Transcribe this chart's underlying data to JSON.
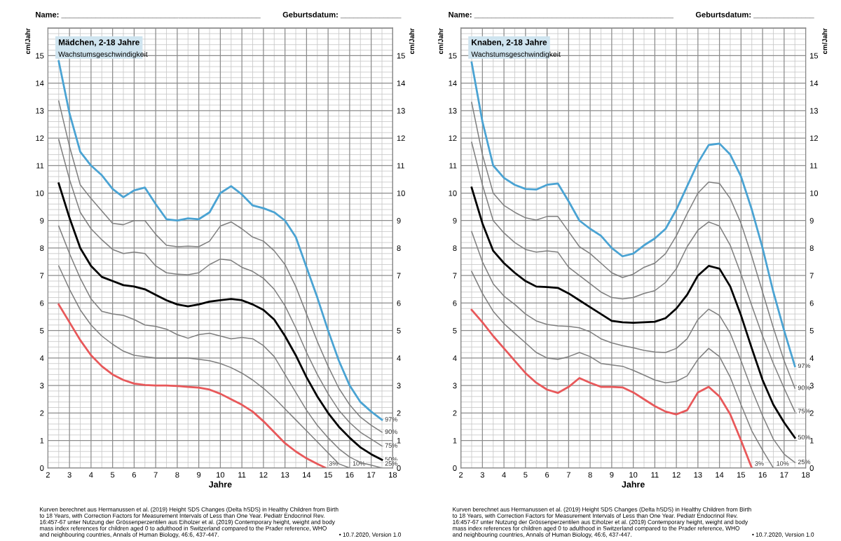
{
  "chart_data": [
    {
      "type": "line",
      "title": "Mädchen, 2-18 Jahre",
      "subtitle": "Wachstumsgeschwindigkeit",
      "xlabel": "Jahre",
      "ylabel": "cm/Jahr",
      "y2label": "cm/Jahr",
      "x": [
        2.5,
        3,
        3.5,
        4,
        4.5,
        5,
        5.5,
        6,
        6.5,
        7,
        7.5,
        8,
        8.5,
        9,
        9.5,
        10,
        10.5,
        11,
        11.5,
        12,
        12.5,
        13,
        13.5,
        14,
        14.5,
        15,
        15.5,
        16,
        16.5,
        17,
        17.5
      ],
      "series": [
        {
          "name": "97%",
          "color": "#4aa3d3",
          "values": [
            14.8,
            12.9,
            11.5,
            11.0,
            10.65,
            10.15,
            9.85,
            10.1,
            10.2,
            9.6,
            9.05,
            9.0,
            9.08,
            9.05,
            9.3,
            10.0,
            10.25,
            9.95,
            9.55,
            9.45,
            9.3,
            9.0,
            8.4,
            7.3,
            6.2,
            5.0,
            3.9,
            3.0,
            2.4,
            2.05,
            1.75
          ]
        },
        {
          "name": "90%",
          "color": "#7f7f7f",
          "values": [
            13.35,
            11.7,
            10.3,
            9.8,
            9.35,
            8.9,
            8.85,
            9.0,
            9.0,
            8.5,
            8.1,
            8.05,
            8.07,
            8.05,
            8.25,
            8.8,
            8.95,
            8.7,
            8.4,
            8.25,
            7.9,
            7.4,
            6.6,
            5.6,
            4.6,
            3.7,
            2.9,
            2.3,
            1.85,
            1.55,
            1.3
          ]
        },
        {
          "name": "75%",
          "color": "#7f7f7f",
          "values": [
            11.95,
            10.5,
            9.3,
            8.7,
            8.3,
            7.95,
            7.8,
            7.85,
            7.8,
            7.35,
            7.1,
            7.05,
            7.03,
            7.1,
            7.4,
            7.6,
            7.55,
            7.3,
            7.15,
            6.9,
            6.5,
            5.9,
            5.1,
            4.2,
            3.4,
            2.7,
            2.1,
            1.65,
            1.3,
            1.05,
            0.8
          ]
        },
        {
          "name": "50%",
          "color": "#000000",
          "values": [
            10.35,
            9.1,
            8.0,
            7.35,
            6.95,
            6.8,
            6.65,
            6.6,
            6.5,
            6.3,
            6.1,
            5.95,
            5.88,
            5.95,
            6.05,
            6.1,
            6.15,
            6.1,
            5.95,
            5.75,
            5.4,
            4.8,
            4.1,
            3.3,
            2.6,
            2.0,
            1.5,
            1.1,
            0.75,
            0.5,
            0.3
          ]
        },
        {
          "name": "25%",
          "color": "#7f7f7f",
          "values": [
            8.8,
            7.8,
            6.9,
            6.15,
            5.7,
            5.6,
            5.55,
            5.4,
            5.2,
            5.15,
            5.05,
            4.85,
            4.72,
            4.85,
            4.9,
            4.8,
            4.7,
            4.75,
            4.7,
            4.45,
            4.05,
            3.4,
            2.75,
            2.1,
            1.55,
            1.1,
            0.7,
            0.4,
            0.2,
            0.1,
            0.0
          ]
        },
        {
          "name": "10%",
          "color": "#7f7f7f",
          "x": [
            2.5,
            3,
            3.5,
            4,
            4.5,
            5,
            5.5,
            6,
            6.5,
            7,
            7.5,
            8,
            8.5,
            9,
            9.5,
            10,
            10.5,
            11,
            11.5,
            12,
            12.5,
            13,
            13.5,
            14,
            14.5,
            15,
            15.5,
            16
          ],
          "values": [
            7.35,
            6.5,
            5.75,
            5.2,
            4.8,
            4.5,
            4.25,
            4.1,
            4.05,
            4.0,
            4.0,
            4.0,
            4.0,
            3.95,
            3.9,
            3.8,
            3.65,
            3.45,
            3.2,
            2.9,
            2.55,
            2.15,
            1.75,
            1.35,
            0.95,
            0.55,
            0.15,
            0.0
          ]
        },
        {
          "name": "3%",
          "color": "#e8585a",
          "x": [
            2.5,
            3,
            3.5,
            4,
            4.5,
            5,
            5.5,
            6,
            6.5,
            7,
            7.5,
            8,
            8.5,
            9,
            9.5,
            10,
            10.5,
            11,
            11.5,
            12,
            12.5,
            13,
            13.5,
            14,
            14.5,
            14.9
          ],
          "values": [
            5.95,
            5.3,
            4.65,
            4.1,
            3.7,
            3.4,
            3.2,
            3.07,
            3.02,
            3.0,
            3.0,
            2.98,
            2.95,
            2.92,
            2.85,
            2.7,
            2.5,
            2.3,
            2.05,
            1.7,
            1.3,
            0.9,
            0.6,
            0.35,
            0.15,
            0.0
          ]
        }
      ],
      "xlim": [
        2,
        18
      ],
      "xticks": [
        2,
        3,
        4,
        5,
        6,
        7,
        8,
        9,
        10,
        11,
        12,
        13,
        14,
        15,
        16,
        17,
        18
      ],
      "ylim": [
        0,
        16
      ],
      "yticks": [
        0,
        1,
        2,
        3,
        4,
        5,
        6,
        7,
        8,
        9,
        10,
        11,
        12,
        13,
        14,
        15
      ],
      "y2lim": [
        0,
        16
      ],
      "y2ticks": [
        0,
        1,
        2,
        3,
        4,
        5,
        6,
        7,
        8,
        9,
        10,
        11,
        12,
        13,
        14,
        15
      ],
      "grid": true,
      "line_style": "solid",
      "marker": "none",
      "annotations": [
        "Name: ______________________________________________",
        "Geburtsdatum: ______________",
        "Kurven berechnet aus Hermanussen et al. (2019) Height SDS Changes (Delta hSDS) in Healthy Children from Birth\nto 18 Years, with Correction Factors for Measurement Intervals of Less than One Year. Pediatr Endocrinol Rev.\n16:457-67 unter Nutzung der Grössenperzentilen aus Eiholzer et al. (2019) Contemporary height, weight and body\nmass index references for children aged 0 to adulthood in Switzerland compared to the Prader reference, WHO\nand neighbouring countries, Annals of Human Biology, 46:6, 437-447.",
        "• 10.7.2020, Version 1.0"
      ]
    },
    {
      "type": "line",
      "title": "Knaben, 2-18 Jahre",
      "subtitle": "Wachstumsgeschwindigkeit",
      "xlabel": "Jahre",
      "ylabel": "cm/Jahr",
      "y2label": "cm/Jahr",
      "x": [
        2.5,
        3,
        3.5,
        4,
        4.5,
        5,
        5.5,
        6,
        6.5,
        7,
        7.5,
        8,
        8.5,
        9,
        9.5,
        10,
        10.5,
        11,
        11.5,
        12,
        12.5,
        13,
        13.5,
        14,
        14.5,
        15,
        15.5,
        16,
        16.5,
        17,
        17.5
      ],
      "series": [
        {
          "name": "97%",
          "color": "#4aa3d3",
          "values": [
            14.75,
            12.6,
            11.0,
            10.55,
            10.3,
            10.15,
            10.13,
            10.3,
            10.35,
            9.7,
            9.0,
            8.7,
            8.45,
            8.0,
            7.7,
            7.8,
            8.1,
            8.35,
            8.7,
            9.4,
            10.25,
            11.1,
            11.75,
            11.8,
            11.4,
            10.6,
            9.4,
            8.0,
            6.4,
            5.0,
            3.7
          ]
        },
        {
          "name": "90%",
          "color": "#7f7f7f",
          "values": [
            13.3,
            11.4,
            10.0,
            9.55,
            9.3,
            9.1,
            9.02,
            9.15,
            9.15,
            8.6,
            8.05,
            7.8,
            7.45,
            7.1,
            6.93,
            7.05,
            7.3,
            7.45,
            7.8,
            8.45,
            9.25,
            10.0,
            10.4,
            10.35,
            9.8,
            8.9,
            7.7,
            6.4,
            5.1,
            3.9,
            2.9
          ]
        },
        {
          "name": "75%",
          "color": "#7f7f7f",
          "values": [
            11.85,
            10.3,
            9.0,
            8.55,
            8.2,
            7.95,
            7.85,
            7.9,
            7.85,
            7.3,
            7.0,
            6.7,
            6.4,
            6.2,
            6.15,
            6.2,
            6.35,
            6.45,
            6.75,
            7.25,
            8.05,
            8.65,
            8.95,
            8.8,
            8.1,
            7.05,
            5.9,
            4.8,
            3.8,
            2.9,
            2.05
          ]
        },
        {
          "name": "50%",
          "color": "#000000",
          "values": [
            10.2,
            8.9,
            7.9,
            7.45,
            7.1,
            6.8,
            6.6,
            6.58,
            6.55,
            6.35,
            6.1,
            5.85,
            5.6,
            5.35,
            5.3,
            5.28,
            5.3,
            5.32,
            5.45,
            5.8,
            6.3,
            7.0,
            7.35,
            7.25,
            6.6,
            5.55,
            4.35,
            3.2,
            2.3,
            1.65,
            1.1
          ]
        },
        {
          "name": "25%",
          "color": "#7f7f7f",
          "values": [
            8.6,
            7.5,
            6.7,
            6.25,
            5.95,
            5.6,
            5.35,
            5.22,
            5.17,
            5.15,
            5.1,
            4.95,
            4.7,
            4.55,
            4.45,
            4.37,
            4.28,
            4.22,
            4.2,
            4.35,
            4.7,
            5.4,
            5.78,
            5.55,
            4.9,
            3.9,
            2.85,
            1.9,
            1.05,
            0.5,
            0.2
          ]
        },
        {
          "name": "10%",
          "color": "#7f7f7f",
          "x": [
            2.5,
            3,
            3.5,
            4,
            4.5,
            5,
            5.5,
            6,
            6.5,
            7,
            7.5,
            8,
            8.5,
            9,
            9.5,
            10,
            10.5,
            11,
            11.5,
            12,
            12.5,
            13,
            13.5,
            14,
            14.5,
            15,
            15.5,
            16,
            16.5
          ],
          "values": [
            7.15,
            6.35,
            5.7,
            5.25,
            4.9,
            4.55,
            4.2,
            4.0,
            3.95,
            4.05,
            4.2,
            4.05,
            3.8,
            3.75,
            3.7,
            3.55,
            3.38,
            3.2,
            3.1,
            3.15,
            3.35,
            3.95,
            4.35,
            4.05,
            3.3,
            2.3,
            1.35,
            0.65,
            0.0
          ]
        },
        {
          "name": "3%",
          "color": "#e8585a",
          "x": [
            2.5,
            3,
            3.5,
            4,
            4.5,
            5,
            5.5,
            6,
            6.5,
            7,
            7.5,
            8,
            8.5,
            9,
            9.5,
            10,
            10.5,
            11,
            11.5,
            12,
            12.5,
            13,
            13.5,
            14,
            14.5,
            15,
            15.5
          ],
          "values": [
            5.75,
            5.3,
            4.8,
            4.35,
            3.9,
            3.45,
            3.1,
            2.85,
            2.73,
            2.95,
            3.27,
            3.1,
            2.95,
            2.95,
            2.93,
            2.75,
            2.5,
            2.25,
            2.05,
            1.95,
            2.1,
            2.75,
            2.95,
            2.6,
            1.95,
            1.0,
            0.0
          ]
        }
      ],
      "xlim": [
        2,
        18
      ],
      "xticks": [
        2,
        3,
        4,
        5,
        6,
        7,
        8,
        9,
        10,
        11,
        12,
        13,
        14,
        15,
        16,
        17,
        18
      ],
      "ylim": [
        0,
        16
      ],
      "yticks": [
        0,
        1,
        2,
        3,
        4,
        5,
        6,
        7,
        8,
        9,
        10,
        11,
        12,
        13,
        14,
        15
      ],
      "y2lim": [
        0,
        16
      ],
      "y2ticks": [
        0,
        1,
        2,
        3,
        4,
        5,
        6,
        7,
        8,
        9,
        10,
        11,
        12,
        13,
        14,
        15
      ],
      "grid": true,
      "line_style": "solid",
      "marker": "none",
      "annotations": [
        "Name: ______________________________________________",
        "Geburtsdatum: ______________",
        "Kurven berechnet aus Hermanussen et al. (2019) Height SDS Changes (Delta hSDS) in Healthy Children from Birth\nto 18 Years, with Correction Factors for Measurement Intervals of Less than One Year. Pediatr Endocrinol Rev.\n16:457-67 unter Nutzung der Grössenperzentilen aus Eiholzer et al. (2019) Contemporary height, weight and body\nmass index references for children aged 0 to adulthood in Switzerland compared to the Prader reference, WHO\nand neighbouring countries, Annals of Human Biology, 46:6, 437-447.",
        "• 10.7.2020, Version 1.0"
      ]
    }
  ]
}
